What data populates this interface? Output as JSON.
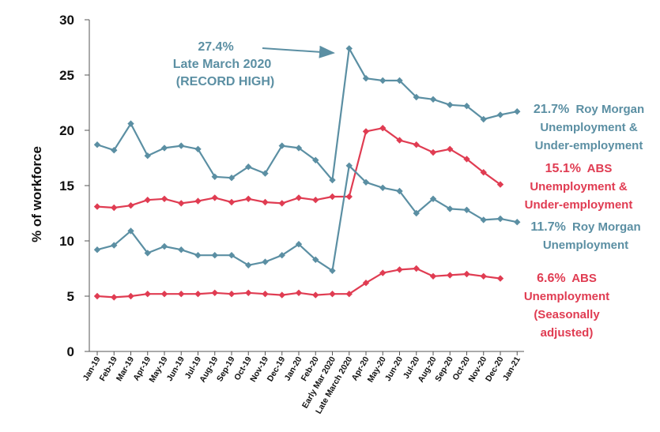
{
  "chart_data": {
    "type": "line",
    "ylabel": "% of workforce",
    "ylim": [
      0,
      30
    ],
    "yticks": [
      0,
      5,
      10,
      15,
      20,
      25,
      30
    ],
    "grid": false,
    "categories": [
      "Jan-19",
      "Feb-19",
      "Mar-19",
      "Apr-19",
      "May-19",
      "Jun-19",
      "Jul-19",
      "Aug-19",
      "Sep-19",
      "Oct-19",
      "Nov-19",
      "Dec-19",
      "Jan-20",
      "Feb-20",
      "Early Mar 2020",
      "Late March 2020",
      "Apr-20",
      "May-20",
      "Jun-20",
      "Jul-20",
      "Aug-20",
      "Sep-20",
      "Oct-20",
      "Nov-20",
      "Dec-20",
      "Jan-21"
    ],
    "series": [
      {
        "name": "Roy Morgan Unemployment & Under-employment",
        "color": "#5b8fa3",
        "values": [
          18.7,
          18.2,
          20.6,
          17.7,
          18.4,
          18.6,
          18.3,
          15.8,
          15.7,
          16.7,
          16.1,
          18.6,
          18.4,
          17.3,
          15.5,
          27.4,
          24.7,
          24.5,
          24.5,
          23.0,
          22.8,
          22.3,
          22.2,
          21.0,
          21.4,
          21.7
        ]
      },
      {
        "name": "ABS Unemployment & Under-employment",
        "color": "#e03c52",
        "values": [
          13.1,
          13.0,
          13.2,
          13.7,
          13.8,
          13.4,
          13.6,
          13.9,
          13.5,
          13.8,
          13.5,
          13.4,
          13.9,
          13.7,
          14.0,
          14.0,
          19.9,
          20.2,
          19.1,
          18.7,
          18.0,
          18.3,
          17.4,
          16.2,
          15.1,
          null
        ]
      },
      {
        "name": "Roy Morgan Unemployment",
        "color": "#5b8fa3",
        "values": [
          9.2,
          9.6,
          10.9,
          8.9,
          9.5,
          9.2,
          8.7,
          8.7,
          8.7,
          7.8,
          8.1,
          8.7,
          9.7,
          8.3,
          7.3,
          16.8,
          15.3,
          14.8,
          14.5,
          12.5,
          13.8,
          12.9,
          12.8,
          11.9,
          12.0,
          11.7
        ]
      },
      {
        "name": "ABS Unemployment (Seasonally adjusted)",
        "color": "#e03c52",
        "values": [
          5.0,
          4.9,
          5.0,
          5.2,
          5.2,
          5.2,
          5.2,
          5.3,
          5.2,
          5.3,
          5.2,
          5.1,
          5.3,
          5.1,
          5.2,
          5.2,
          6.2,
          7.1,
          7.4,
          7.5,
          6.8,
          6.9,
          7.0,
          6.8,
          6.6,
          null
        ]
      }
    ],
    "annotations": {
      "record": [
        "27.4%",
        "Late March 2020",
        "(RECORD HIGH)"
      ],
      "rm_total": {
        "value": "21.7%",
        "label_lines": [
          "Roy Morgan",
          "Unemployment &",
          "Under-employment"
        ]
      },
      "abs_total": {
        "value": "15.1%",
        "label_lines": [
          "ABS",
          "Unemployment &",
          "Under-employment"
        ]
      },
      "rm_unemp": {
        "value": "11.7%",
        "label_lines": [
          "Roy Morgan",
          "Unemployment"
        ]
      },
      "abs_unemp": {
        "value": "6.6%",
        "label_lines": [
          "ABS",
          "Unemployment",
          "(Seasonally",
          "adjusted)"
        ]
      }
    }
  }
}
